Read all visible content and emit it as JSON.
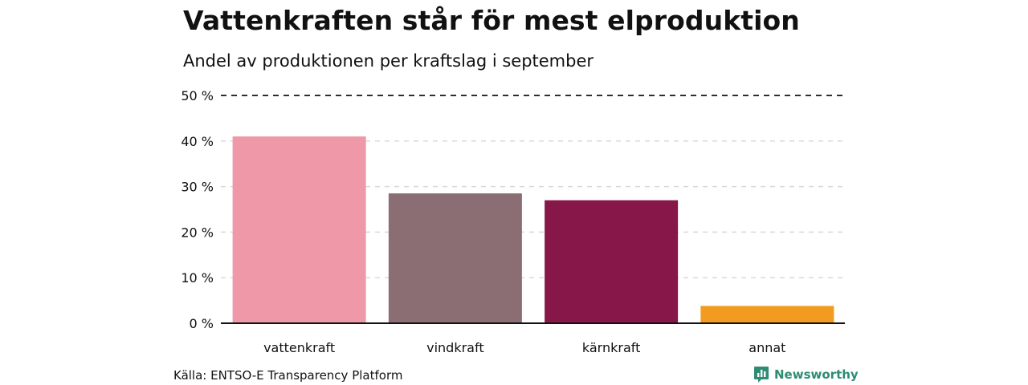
{
  "title": "Vattenkraften står för mest elproduktion",
  "subtitle": "Andel av produktionen per kraftslag i september",
  "source": "Källa: ENTSO-E Transparency Platform",
  "brand": {
    "name": "Newsworthy",
    "color": "#2e8b74",
    "icon": "bar-chart-speech-bubble-icon"
  },
  "colors": {
    "gridline": "#d9d9d9",
    "top_gridline": "#111111",
    "baseline": "#111111"
  },
  "chart_data": {
    "type": "bar",
    "categories": [
      "vattenkraft",
      "vindkraft",
      "kärnkraft",
      "annat"
    ],
    "values": [
      41,
      28.5,
      27,
      3.8
    ],
    "unit": "%",
    "bar_colors": [
      "#ee98a8",
      "#8b6d74",
      "#861748",
      "#f19c20"
    ],
    "ylim": [
      0,
      50
    ],
    "yticks": [
      0,
      10,
      20,
      30,
      40,
      50
    ],
    "ytick_labels": [
      "0 %",
      "10 %",
      "20 %",
      "30 %",
      "40 %",
      "50 %"
    ],
    "grid": true,
    "xlabel": "",
    "ylabel": ""
  }
}
